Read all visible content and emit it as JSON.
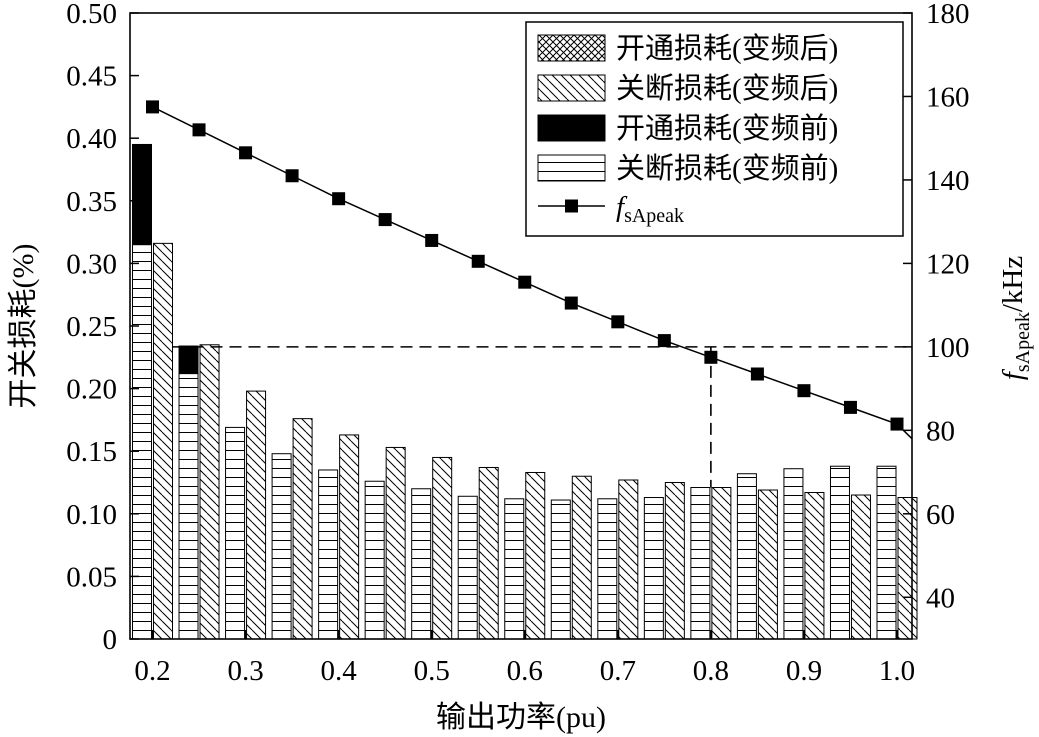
{
  "chart_data": {
    "type": "bar",
    "xlabel": "输出功率(pu)",
    "ylabel_left": "开关损耗(%)",
    "ylabel_right_main": "f",
    "ylabel_right_sub": "sApeak",
    "ylabel_right_unit": "/kHz",
    "x_ticks": [
      "0.2",
      "0.3",
      "0.4",
      "0.5",
      "0.6",
      "0.7",
      "0.8",
      "0.9",
      "1.0"
    ],
    "x_tick_values": [
      0.2,
      0.3,
      0.4,
      0.5,
      0.6,
      0.7,
      0.8,
      0.9,
      1.0
    ],
    "xlim": [
      0.18,
      1.0
    ],
    "ylim_left": [
      0,
      0.5
    ],
    "y_ticks_left": [
      "0",
      "0.05",
      "0.10",
      "0.15",
      "0.20",
      "0.25",
      "0.30",
      "0.35",
      "0.40",
      "0.45",
      "0.50"
    ],
    "y_tick_values_left": [
      0,
      0.05,
      0.1,
      0.15,
      0.2,
      0.25,
      0.3,
      0.35,
      0.4,
      0.45,
      0.5
    ],
    "ylim_right": [
      30,
      180
    ],
    "y_ticks_right": [
      "40",
      "60",
      "80",
      "100",
      "120",
      "140",
      "160",
      "180"
    ],
    "y_tick_values_right": [
      40,
      60,
      80,
      100,
      120,
      140,
      160,
      180
    ],
    "x": [
      0.2,
      0.25,
      0.3,
      0.35,
      0.4,
      0.45,
      0.5,
      0.55,
      0.6,
      0.65,
      0.7,
      0.75,
      0.8,
      0.85,
      0.9,
      0.95,
      1.0
    ],
    "series": [
      {
        "name": "开通损耗(变频后)",
        "kind": "bar",
        "pattern": "crosshatch",
        "values": [
          0,
          0,
          0,
          0,
          0,
          0,
          0,
          0,
          0,
          0,
          0,
          0,
          0,
          0,
          0,
          0,
          0
        ]
      },
      {
        "name": "关断损耗(变频后)",
        "kind": "bar",
        "pattern": "diagonal",
        "values": [
          0.316,
          0.235,
          0.198,
          0.176,
          0.163,
          0.153,
          0.145,
          0.137,
          0.133,
          0.13,
          0.127,
          0.125,
          0.121,
          0.119,
          0.117,
          0.115,
          0.113
        ]
      },
      {
        "name": "开通损耗(变频前)",
        "kind": "bar-stacked-on-off",
        "pattern": "solid",
        "values": [
          0.08,
          0.022,
          0,
          0,
          0,
          0,
          0,
          0,
          0,
          0,
          0,
          0,
          0,
          0,
          0,
          0,
          0
        ]
      },
      {
        "name": "关断损耗(变频前)",
        "kind": "bar",
        "pattern": "horizontal",
        "values": [
          0.315,
          0.212,
          0.169,
          0.148,
          0.135,
          0.126,
          0.12,
          0.114,
          0.112,
          0.111,
          0.112,
          0.113,
          0.121,
          0.132,
          0.136,
          0.138,
          0.138
        ]
      },
      {
        "name": "fsApeak",
        "kind": "line",
        "axis": "right",
        "color": "#000000",
        "values": [
          157.5,
          152,
          146.5,
          141,
          135.5,
          130.5,
          125.5,
          120.5,
          115.5,
          110.5,
          106,
          101.5,
          97.5,
          93.5,
          89.5,
          85.5,
          81.5
        ]
      }
    ],
    "reference": {
      "y_right": 100,
      "x_from": 0.2,
      "x_drop": 0.8,
      "style": "dashed"
    },
    "legend_placement": "top-right",
    "grid": false
  }
}
